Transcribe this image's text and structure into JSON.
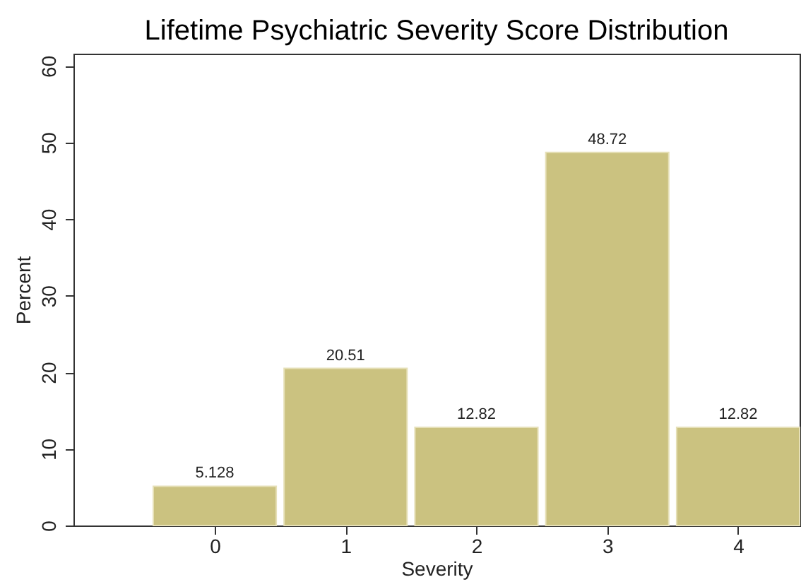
{
  "chart_data": {
    "type": "bar",
    "title": "Lifetime Psychiatric Severity Score Distribution",
    "xlabel": "Severity",
    "ylabel": "Percent",
    "x": [
      0,
      1,
      2,
      3,
      4
    ],
    "values": [
      5.128,
      20.51,
      12.82,
      48.72,
      12.82
    ],
    "color": "#cbc280",
    "xlim": [
      -1.08,
      4.47
    ],
    "xticks": [
      0,
      1,
      2,
      3,
      4
    ],
    "ylim": [
      0,
      61.6
    ],
    "yticks": [
      0,
      10,
      20,
      30,
      40,
      50,
      60
    ],
    "data_labels": true,
    "grid": false
  }
}
